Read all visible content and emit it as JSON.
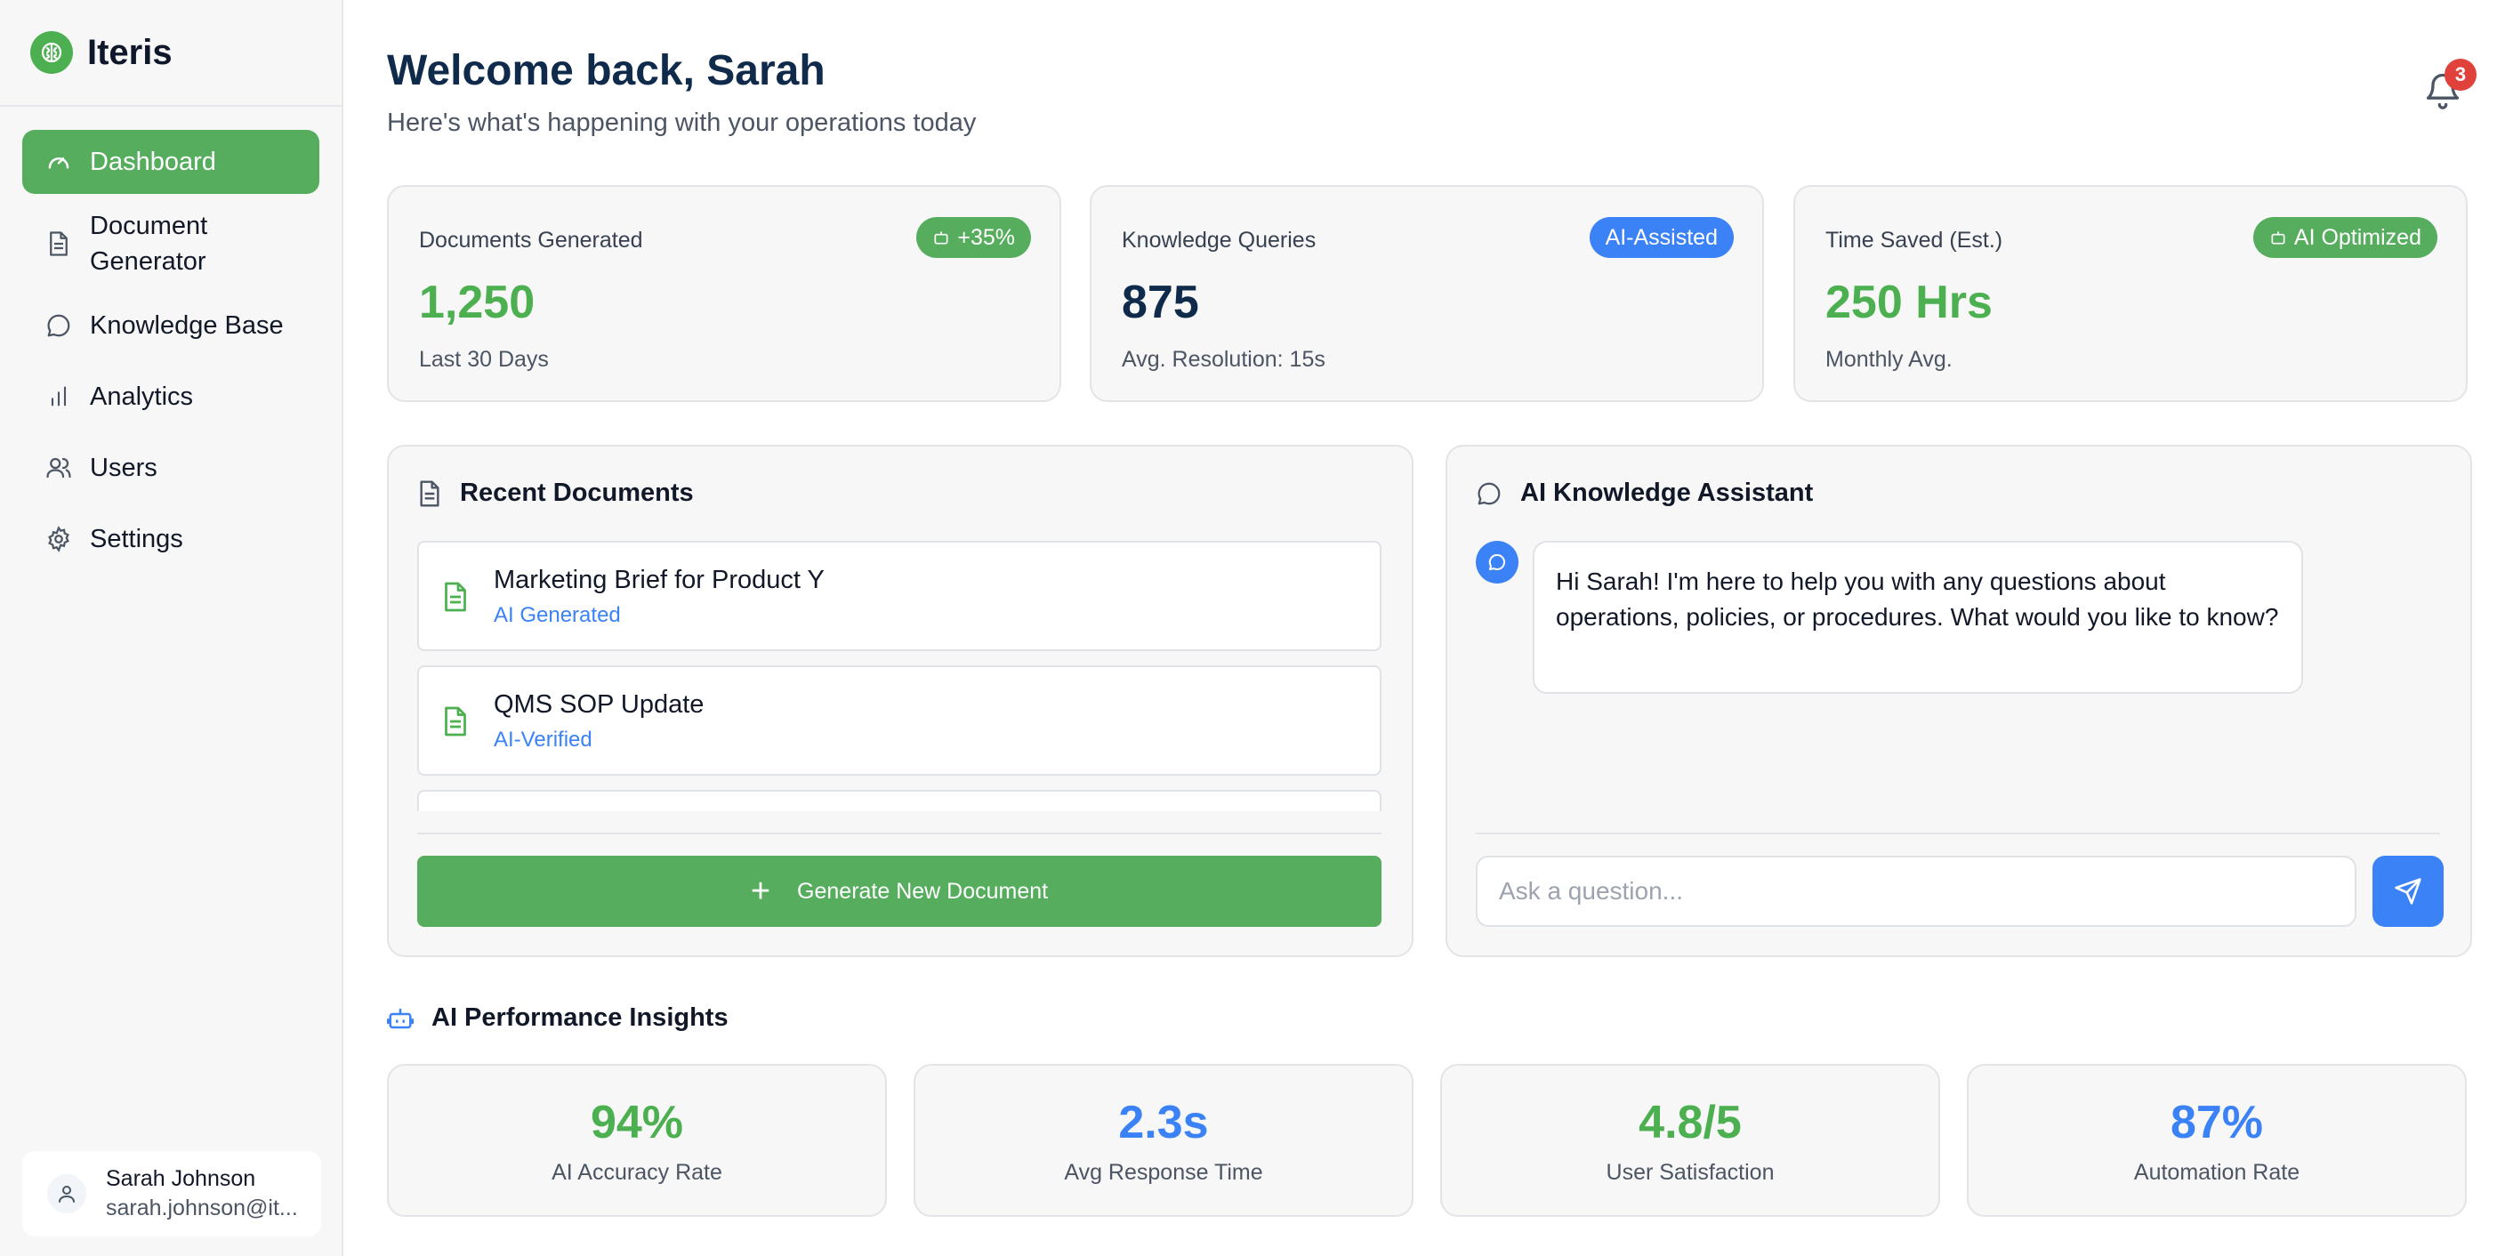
{
  "app": {
    "name": "Iteris"
  },
  "sidebar": {
    "items": [
      {
        "label": "Dashboard",
        "icon": "gauge-icon",
        "active": true
      },
      {
        "label": "Document Generator",
        "icon": "document-icon"
      },
      {
        "label": "Knowledge Base",
        "icon": "chat-bubble-icon"
      },
      {
        "label": "Analytics",
        "icon": "bar-chart-icon"
      },
      {
        "label": "Users",
        "icon": "users-icon"
      },
      {
        "label": "Settings",
        "icon": "gear-icon"
      }
    ],
    "user": {
      "name": "Sarah Johnson",
      "email": "sarah.johnson@it..."
    }
  },
  "header": {
    "title": "Welcome back, Sarah",
    "subtitle": "Here's what's happening with your operations today",
    "notification_count": "3"
  },
  "stats": [
    {
      "label": "Documents Generated",
      "value": "1,250",
      "footnote": "Last 30 Days",
      "badge": "+35%",
      "badge_color": "#4caf50",
      "value_color": "#4caf50"
    },
    {
      "label": "Knowledge Queries",
      "value": "875",
      "footnote": "Avg. Resolution: 15s",
      "badge": "AI-Assisted",
      "badge_color": "#3b82f6",
      "value_color": "#0f2a4a"
    },
    {
      "label": "Time Saved (Est.)",
      "value": "250 Hrs",
      "footnote": "Monthly Avg.",
      "badge": "AI Optimized",
      "badge_color": "#4caf50",
      "value_color": "#4caf50"
    }
  ],
  "recent_documents": {
    "title": "Recent Documents",
    "items": [
      {
        "title": "Marketing Brief for Product Y",
        "tag": "AI Generated"
      },
      {
        "title": "QMS SOP Update",
        "tag": "AI-Verified"
      }
    ],
    "generate_button": "Generate New Document"
  },
  "assistant": {
    "title": "AI Knowledge Assistant",
    "message": "Hi Sarah! I'm here to help you with any questions about operations, policies, or procedures. What would you like to know?",
    "input_placeholder": "Ask a question..."
  },
  "insights": {
    "title": "AI Performance Insights",
    "metrics": [
      {
        "value": "94%",
        "label": "AI Accuracy Rate",
        "color": "#4caf50"
      },
      {
        "value": "2.3s",
        "label": "Avg Response Time",
        "color": "#3b82f6"
      },
      {
        "value": "4.8/5",
        "label": "User Satisfaction",
        "color": "#4caf50"
      },
      {
        "value": "87%",
        "label": "Automation Rate",
        "color": "#3b82f6"
      }
    ]
  }
}
